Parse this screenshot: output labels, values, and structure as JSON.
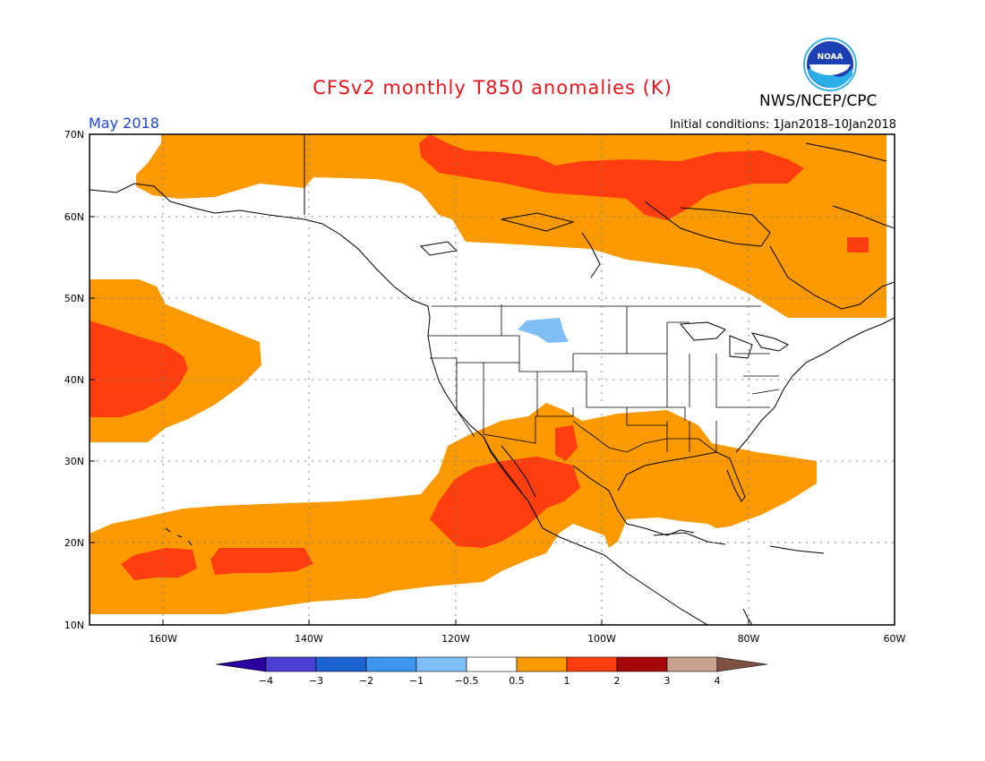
{
  "title": "CFSv2 monthly T850 anomalies (K)",
  "month": "May 2018",
  "initial_conditions": "Initial conditions:  1Jan2018–10Jan2018",
  "agency": "NWS/NCEP/CPC",
  "logo_text": "NOAA",
  "map": {
    "lon_range": [
      -170,
      -60
    ],
    "lat_range": [
      10,
      70
    ],
    "lat_ticks": [
      "10N",
      "20N",
      "30N",
      "40N",
      "50N",
      "60N",
      "70N"
    ],
    "lon_ticks": [
      "160W",
      "140W",
      "120W",
      "100W",
      "80W",
      "60W"
    ],
    "grid": "dotted"
  },
  "colorbar": {
    "labels": [
      "−4",
      "−3",
      "−2",
      "−1",
      "−0.5",
      "0.5",
      "1",
      "2",
      "3",
      "4"
    ],
    "colors": [
      "#2a00a0",
      "#4b3fd6",
      "#1e63d2",
      "#3f94ee",
      "#7fbff6",
      "#ffffff",
      "#fa9a00",
      "#ff3e10",
      "#a40808",
      "#c8a08e",
      "#7e5042"
    ]
  },
  "anomaly_regions": [
    {
      "level": "0.5 to 1",
      "color": "#fa9a00",
      "area": "North Pacific / Alaska coast, Canada and Arctic"
    },
    {
      "level": "0.5 to 1",
      "color": "#fa9a00",
      "area": "Central North Pacific"
    },
    {
      "level": "0.5 to 1",
      "color": "#fa9a00",
      "area": "Subtropical Pacific, Mexico, southern US, Gulf"
    },
    {
      "level": "1 to 2",
      "color": "#ff3e10",
      "area": "Northern Canada"
    },
    {
      "level": "1 to 2",
      "color": "#ff3e10",
      "area": "Central North Pacific core"
    },
    {
      "level": "1 to 2",
      "color": "#ff3e10",
      "area": "Baja California / northwest Mexico"
    },
    {
      "level": "1 to 2",
      "color": "#ff3e10",
      "area": "Hawaii region"
    },
    {
      "level": "-1 to -0.5",
      "color": "#7fbff6",
      "area": "Northern Rockies"
    }
  ]
}
